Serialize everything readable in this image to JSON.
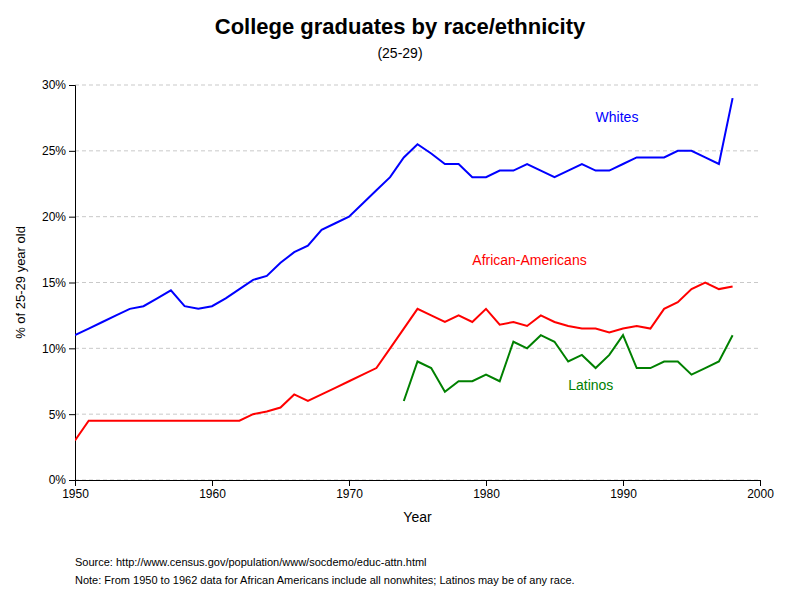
{
  "chart_data": {
    "type": "line",
    "title": "College graduates by race/ethnicity",
    "subtitle": "(25-29)",
    "x_label": "Year",
    "y_label": "% of 25-29 year old",
    "source": "Source: http://www.census.gov/population/www/socdemo/educ-attn.html",
    "note": "Note: From 1950 to 1962 data for African Americans include all nonwhites;  Latinos may be of any race.",
    "xlim": [
      1950,
      2000
    ],
    "ylim": [
      0,
      30
    ],
    "xticks": [
      1950,
      1960,
      1970,
      1980,
      1990,
      2000
    ],
    "yticks": [
      {
        "value": 0,
        "label": "0%"
      },
      {
        "value": 5,
        "label": "5%"
      },
      {
        "value": 10,
        "label": "10%"
      },
      {
        "value": 15,
        "label": "15%"
      },
      {
        "value": 20,
        "label": "20%"
      },
      {
        "value": 25,
        "label": "25%"
      },
      {
        "value": 30,
        "label": "30%"
      }
    ],
    "grid": "y",
    "series": [
      {
        "color": "blue",
        "x": [
          1950,
          1951,
          1952,
          1953,
          1954,
          1955,
          1956,
          1957,
          1958,
          1959,
          1960,
          1961,
          1962,
          1963,
          1964,
          1965,
          1966,
          1967,
          1968,
          1969,
          1970,
          1971,
          1972,
          1973,
          1974,
          1975,
          1976,
          1977,
          1978,
          1979,
          1980,
          1981,
          1982,
          1983,
          1984,
          1985,
          1986,
          1987,
          1988,
          1989,
          1990,
          1991,
          1992,
          1993,
          1994,
          1995,
          1996,
          1997,
          1998
        ],
        "values": [
          11.0,
          11.5,
          12.0,
          12.5,
          13.0,
          13.2,
          13.8,
          14.4,
          13.2,
          13.0,
          13.2,
          13.8,
          14.5,
          15.2,
          15.5,
          16.5,
          17.3,
          17.8,
          19.0,
          19.5,
          20.0,
          21.0,
          22.0,
          23.0,
          24.5,
          25.5,
          24.8,
          24.0,
          24.0,
          23.0,
          23.0,
          23.5,
          23.5,
          24.0,
          23.5,
          23.0,
          23.5,
          24.0,
          23.5,
          23.5,
          24.0,
          24.5,
          24.5,
          24.5,
          25.0,
          25.0,
          24.5,
          24.0,
          29.0
        ]
      },
      {
        "color": "red",
        "x": [
          1950,
          1951,
          1952,
          1953,
          1954,
          1955,
          1956,
          1957,
          1958,
          1959,
          1960,
          1961,
          1962,
          1963,
          1964,
          1965,
          1966,
          1967,
          1968,
          1969,
          1970,
          1971,
          1972,
          1973,
          1974,
          1975,
          1976,
          1977,
          1978,
          1979,
          1980,
          1981,
          1982,
          1983,
          1984,
          1985,
          1986,
          1987,
          1988,
          1989,
          1990,
          1991,
          1992,
          1993,
          1994,
          1995,
          1996,
          1997,
          1998
        ],
        "values": [
          3.0,
          4.5,
          4.5,
          4.5,
          4.5,
          4.5,
          4.5,
          4.5,
          4.5,
          4.5,
          4.5,
          4.5,
          4.5,
          5.0,
          5.2,
          5.5,
          6.5,
          6.0,
          6.5,
          7.0,
          7.5,
          8.0,
          8.5,
          10.0,
          11.5,
          13.0,
          12.5,
          12.0,
          12.5,
          12.0,
          13.0,
          11.8,
          12.0,
          11.7,
          12.5,
          12.0,
          11.7,
          11.5,
          11.5,
          11.2,
          11.5,
          11.7,
          11.5,
          13.0,
          13.5,
          14.5,
          15.0,
          14.5,
          14.7
        ]
      },
      {
        "color": "green",
        "x": [
          1974,
          1975,
          1976,
          1977,
          1978,
          1979,
          1980,
          1981,
          1982,
          1983,
          1984,
          1985,
          1986,
          1987,
          1988,
          1989,
          1990,
          1991,
          1992,
          1993,
          1994,
          1995,
          1996,
          1997,
          1998
        ],
        "values": [
          6.0,
          9.0,
          8.5,
          6.7,
          7.5,
          7.5,
          8.0,
          7.5,
          10.5,
          10.0,
          11.0,
          10.5,
          9.0,
          9.5,
          8.5,
          9.5,
          11.0,
          8.5,
          8.5,
          9.0,
          9.0,
          8.0,
          8.5,
          9.0,
          11.0
        ]
      }
    ],
    "annotations": [
      {
        "text": "Whites",
        "x": 1988,
        "y": 27.2,
        "color": "blue"
      },
      {
        "text": "African-Americans",
        "x": 1979,
        "y": 16.3,
        "color": "red"
      },
      {
        "text": "Latinos",
        "x": 1986,
        "y": 6.8,
        "color": "green"
      }
    ]
  }
}
